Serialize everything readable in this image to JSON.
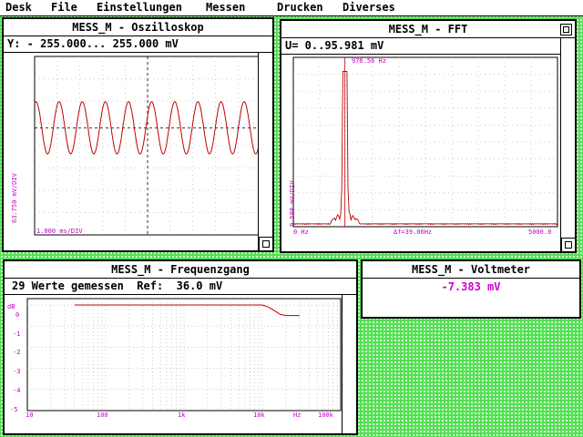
{
  "menubar": {
    "items": [
      "Desk",
      "File",
      "Einstellungen",
      "Messen",
      "Drucken",
      "Diverses"
    ]
  },
  "oscilloscope": {
    "title": "MESS_M - Oszilloskop",
    "info": "Y: - 255.000... 255.000 mV",
    "ylabel": "63.750 mV/DIV",
    "xlabel": "1.000 ms/DIV"
  },
  "fft": {
    "title": "MESS_M - FFT",
    "info": "U= 0..95.981 mV",
    "peak_label": "976.56 Hz",
    "ylabel": "9.598 mV/DIV",
    "x_start": "0 Hz",
    "x_res": "Δf=39.06Hz",
    "x_end": "5000.0"
  },
  "frequency_response": {
    "title": "MESS_M - Frequenzgang",
    "info": "29 Werte gemessen  Ref:  36.0 mV",
    "y_unit": "dB",
    "y_ticks": [
      "0",
      "-1",
      "-2",
      "-3",
      "-4",
      "-5"
    ],
    "x_ticks": [
      "10",
      "100",
      "1k",
      "10k",
      "Hz",
      "100k"
    ]
  },
  "voltmeter": {
    "title": "MESS_M - Voltmeter",
    "value": "-7.383 mV"
  },
  "colors": {
    "desktop": "#54e054",
    "trace": "#c00000",
    "label": "#c000c0",
    "grid": "#9a9a9a"
  },
  "chart_data": [
    {
      "type": "line",
      "name": "oscilloscope",
      "x_unit": "ms",
      "xlim": [
        0,
        10
      ],
      "ylim": [
        -255,
        255
      ],
      "signal": {
        "frequency_hz": 976.56,
        "amplitude_mv": 95.6
      },
      "grid": true
    },
    {
      "type": "line",
      "name": "fft",
      "xlim": [
        0,
        5000
      ],
      "ylim": [
        0,
        95.981
      ],
      "peak": {
        "x": 976.56,
        "y": 88
      },
      "grid": true
    },
    {
      "type": "line",
      "name": "frequency_response",
      "x_scale": "log",
      "xlim": [
        10,
        100000
      ],
      "ylim": [
        -5,
        0.3
      ],
      "x": [
        40,
        100,
        1000,
        10000,
        12000,
        14000,
        17000,
        20000,
        30000
      ],
      "y": [
        0,
        0,
        0,
        0,
        -0.1,
        -0.25,
        -0.45,
        -0.5,
        -0.5
      ],
      "grid": true
    }
  ]
}
